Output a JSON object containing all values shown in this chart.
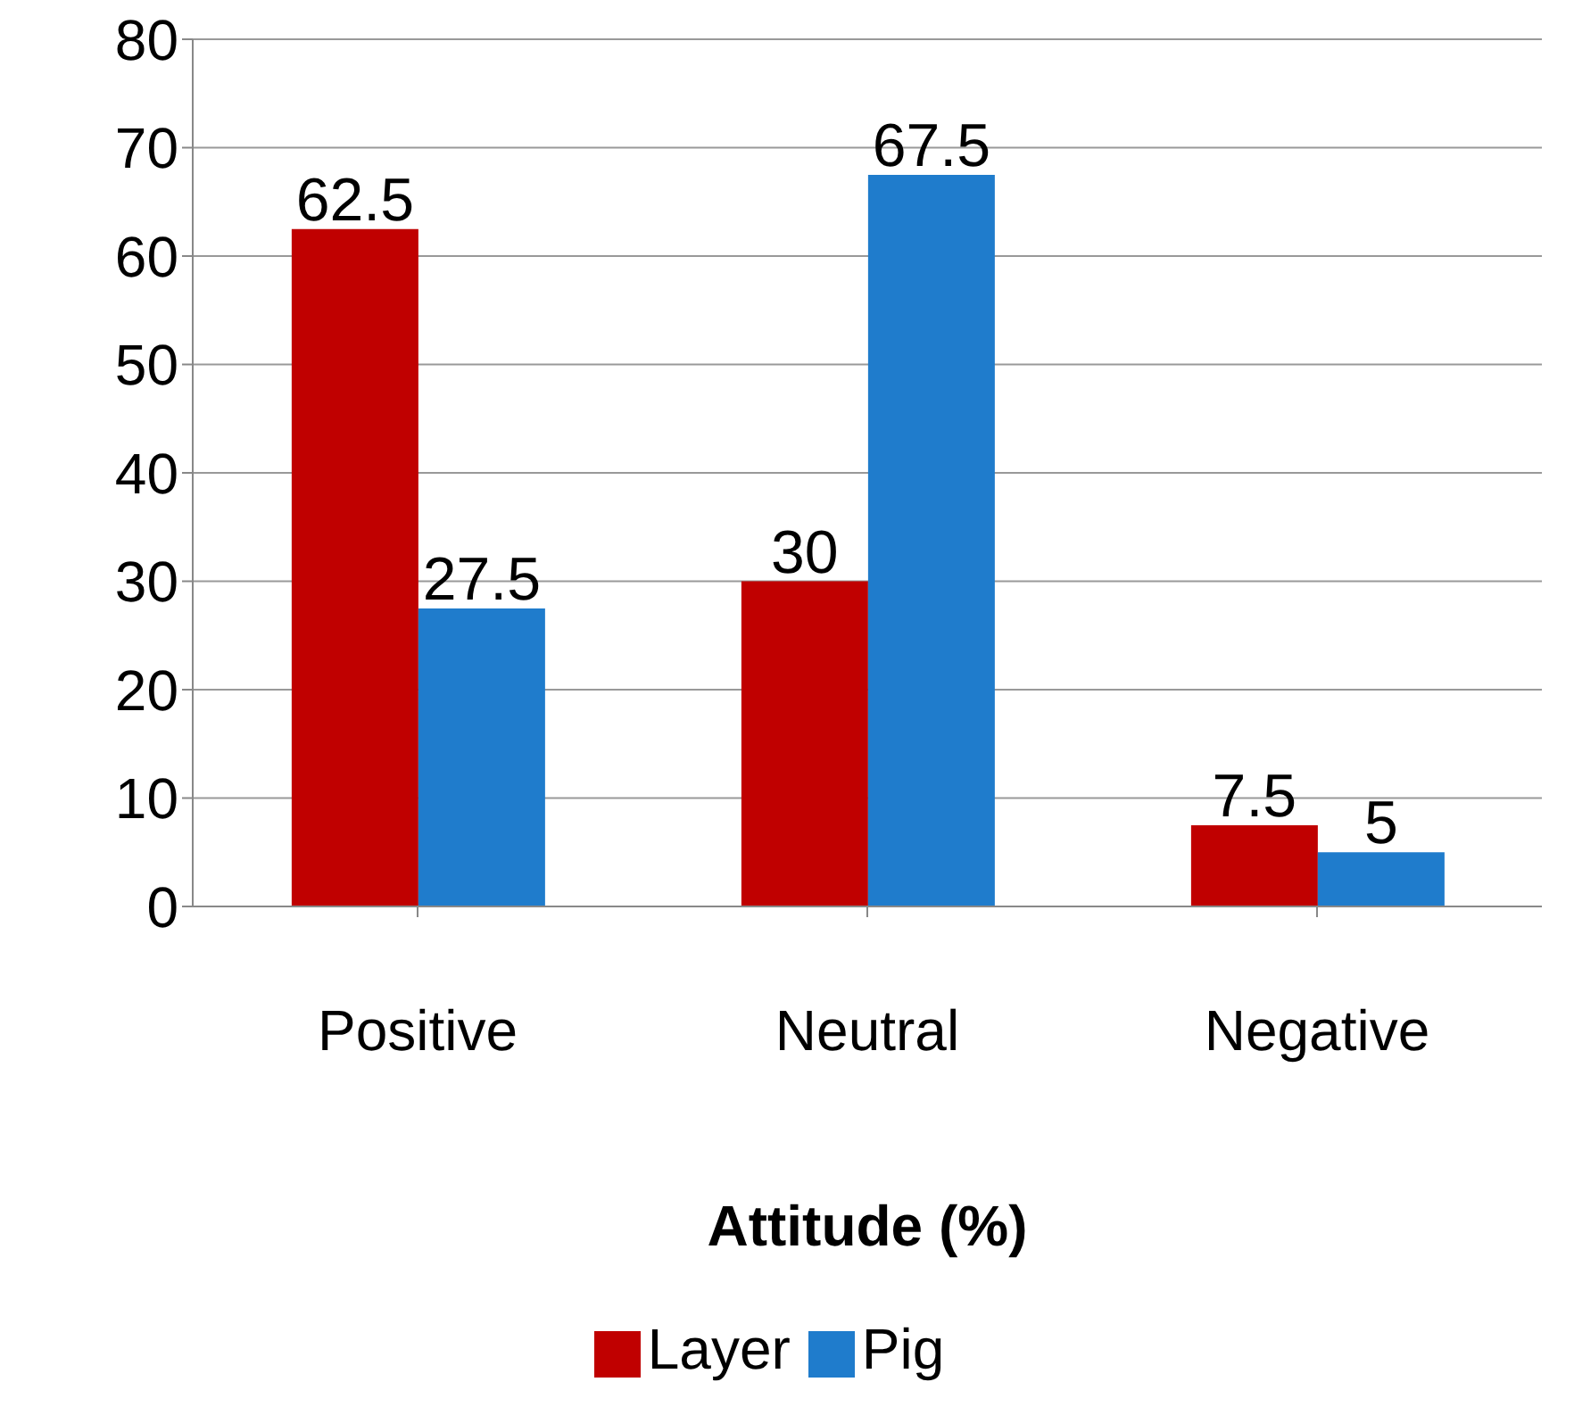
{
  "chart_data": {
    "type": "bar",
    "xlabel": "Attitude (%)",
    "categories": [
      "Positive",
      "Neutral",
      "Negative"
    ],
    "series": [
      {
        "name": "Layer",
        "color": "#c00000",
        "values": [
          62.5,
          30,
          7.5
        ]
      },
      {
        "name": "Pig",
        "color": "#1f7ccc",
        "values": [
          27.5,
          67.5,
          5
        ]
      }
    ],
    "ylim": [
      0,
      80
    ],
    "yticks": [
      0,
      10,
      20,
      30,
      40,
      50,
      60,
      70,
      80
    ],
    "grid": "y",
    "legend": "bottom",
    "data_labels": true
  }
}
